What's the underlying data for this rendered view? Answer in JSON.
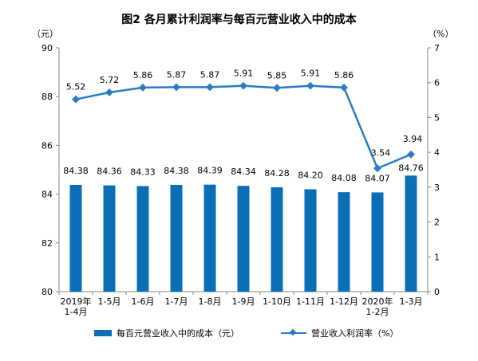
{
  "title": "图2  各月累计利润率与每百元营业收入中的成本",
  "left_unit": "（元）",
  "right_unit": "（%）",
  "legend": {
    "bar_label": "每百元营业收入中的成本（元）",
    "line_label": "营业收入利润率（%）"
  },
  "colors": {
    "bar": "#0b6fb8",
    "line": "#2b7cc4",
    "axis": "#888888"
  },
  "chart_data": {
    "type": "bar",
    "categories": [
      "2019年\n1-4月",
      "1-5月",
      "1-6月",
      "1-7月",
      "1-8月",
      "1-9月",
      "1-10月",
      "1-11月",
      "1-12月",
      "2020年\n1-2月",
      "1-3月"
    ],
    "series": [
      {
        "name": "每百元营业收入中的成本（元）",
        "type": "bar",
        "axis": "left",
        "values": [
          84.38,
          84.36,
          84.33,
          84.38,
          84.39,
          84.34,
          84.28,
          84.2,
          84.08,
          84.07,
          84.76
        ],
        "labels": [
          "84.38",
          "84.36",
          "84.33",
          "84.38",
          "84.39",
          "84.34",
          "84.28",
          "84.20",
          "84.08",
          "84.07",
          "84.76"
        ]
      },
      {
        "name": "营业收入利润率（%）",
        "type": "line",
        "axis": "right",
        "values": [
          5.52,
          5.72,
          5.86,
          5.87,
          5.87,
          5.91,
          5.85,
          5.91,
          5.86,
          3.54,
          3.94
        ],
        "labels": [
          "5.52",
          "5.72",
          "5.86",
          "5.87",
          "5.87",
          "5.91",
          "5.85",
          "5.91",
          "5.86",
          "3.54",
          "3.94"
        ]
      }
    ],
    "left_axis": {
      "min": 80,
      "max": 90,
      "ticks": [
        "80",
        "82",
        "84",
        "86",
        "88",
        "90"
      ]
    },
    "right_axis": {
      "min": 0,
      "max": 7,
      "ticks": [
        "0",
        "1",
        "2",
        "3",
        "4",
        "5",
        "6",
        "7"
      ]
    },
    "grid": false,
    "legend_position": "bottom"
  }
}
